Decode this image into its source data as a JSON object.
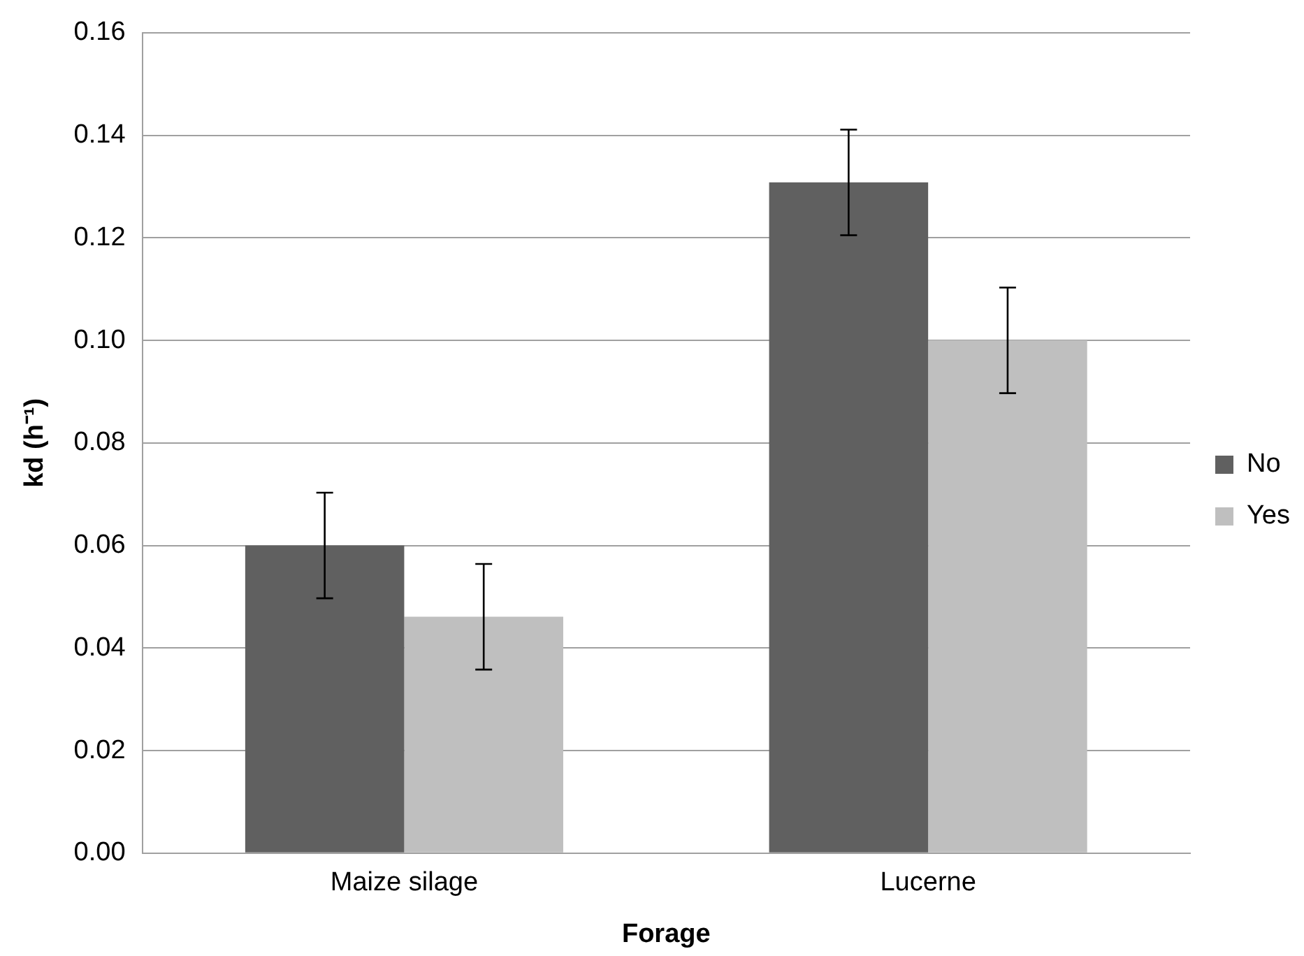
{
  "chart_data": {
    "type": "bar",
    "xlabel": "Forage",
    "ylabel": "kd (h⁻¹)",
    "categories": [
      "Maize silage",
      "Lucerne"
    ],
    "series": [
      {
        "name": "No",
        "color": "#606060",
        "values": [
          0.06,
          0.1308
        ],
        "errors": [
          0.0103,
          0.0103
        ]
      },
      {
        "name": "Yes",
        "color": "#bfbfbf",
        "values": [
          0.0461,
          0.1
        ],
        "errors": [
          0.0103,
          0.0103
        ]
      }
    ],
    "ylim": [
      0,
      0.16
    ],
    "yticks": [
      {
        "value": 0,
        "label": "0.00"
      },
      {
        "value": 0.02,
        "label": "0.02"
      },
      {
        "value": 0.04,
        "label": "0.04"
      },
      {
        "value": 0.06,
        "label": "0.06"
      },
      {
        "value": 0.08,
        "label": "0.08"
      },
      {
        "value": 0.1,
        "label": "0.10"
      },
      {
        "value": 0.12,
        "label": "0.12"
      },
      {
        "value": 0.14,
        "label": "0.14"
      },
      {
        "value": 0.16,
        "label": "0.16"
      }
    ],
    "grid": "y",
    "legend": "right"
  }
}
